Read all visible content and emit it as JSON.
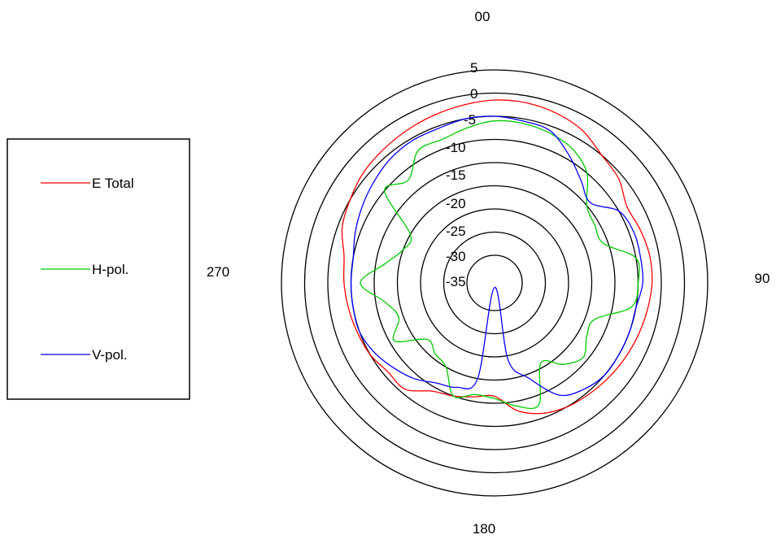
{
  "chart_data": {
    "type": "polar-line",
    "angle_labels": [
      "00",
      "90",
      "180",
      "270"
    ],
    "radial_range": [
      -40,
      5
    ],
    "radial_ticks": [
      5,
      0,
      -5,
      -10,
      -15,
      -20,
      -25,
      -30,
      -35
    ],
    "radial_tick_labels": [
      "5",
      "0",
      "-5",
      "-10",
      "-15",
      "-20",
      "-25",
      "-30",
      "-35"
    ],
    "grid": true,
    "legend_position": "left",
    "angles_deg": [
      0,
      10,
      20,
      30,
      40,
      50,
      60,
      70,
      80,
      90,
      100,
      110,
      120,
      130,
      140,
      150,
      160,
      170,
      180,
      190,
      200,
      210,
      220,
      230,
      240,
      250,
      260,
      270,
      280,
      290,
      300,
      310,
      320,
      330,
      340,
      350
    ],
    "series": [
      {
        "name": "E Total",
        "color": "#ff0000",
        "values": [
          -1.5,
          -1.5,
          -2,
          -3,
          -5,
          -6,
          -8,
          -7.5,
          -7,
          -7,
          -7.5,
          -8,
          -8.5,
          -9,
          -9.5,
          -10,
          -11,
          -13,
          -16.5,
          -16,
          -15,
          -14,
          -11,
          -11,
          -10,
          -9.5,
          -9,
          -8.5,
          -8,
          -6,
          -5,
          -4,
          -3.5,
          -3,
          -2.5,
          -2
        ]
      },
      {
        "name": "H-pol.",
        "color": "#00cc00",
        "values": [
          -6,
          -6,
          -6.5,
          -7.5,
          -10,
          -15,
          -16,
          -16,
          -10,
          -10,
          -11,
          -18,
          -18,
          -16,
          -18,
          -21,
          -13,
          -14,
          -16,
          -16.5,
          -15,
          -20,
          -21,
          -22,
          -16,
          -19,
          -17,
          -12,
          -17,
          -20,
          -20,
          -10,
          -12,
          -8,
          -8,
          -7
        ]
      },
      {
        "name": "V-pol.",
        "color": "#0000ff",
        "values": [
          -5,
          -5.5,
          -6,
          -9,
          -12,
          -14,
          -10,
          -9,
          -9,
          -9,
          -10,
          -10,
          -10,
          -10,
          -11,
          -13,
          -19,
          -24,
          -40,
          -20,
          -17,
          -16,
          -14,
          -12.5,
          -11,
          -10,
          -10,
          -10,
          -10,
          -9,
          -8,
          -7,
          -6,
          -5.5,
          -5.5,
          -5
        ]
      }
    ]
  }
}
